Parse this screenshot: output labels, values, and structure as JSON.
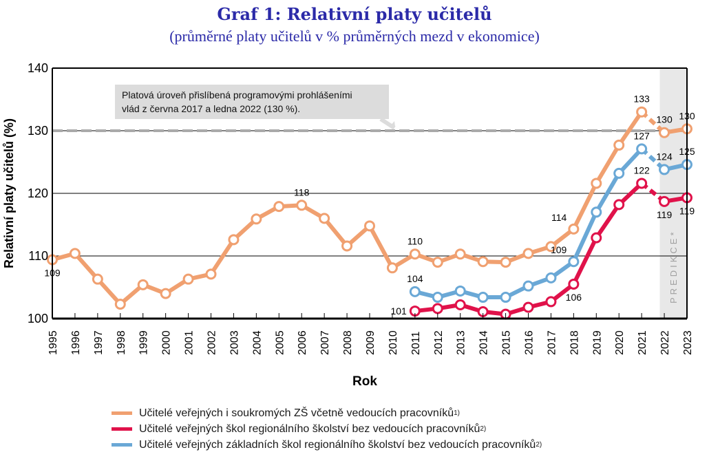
{
  "header": {
    "title": "Graf 1: Relativní platy učitelů",
    "subtitle": "(průměrné platy učitelů v % průměrných mezd v ekonomice)"
  },
  "chart_data": {
    "type": "line",
    "title": "Graf 1: Relativní platy učitelů",
    "subtitle": "(průměrné platy učitelů v % průměrných mezd v ekonomice)",
    "xlabel": "Rok",
    "ylabel": "Relativní platy učitelů (%)",
    "ylim": [
      100,
      140
    ],
    "yticks": [
      100,
      110,
      120,
      130,
      140
    ],
    "grid": "horizontal",
    "legend_position": "bottom",
    "x": [
      1995,
      1996,
      1997,
      1998,
      1999,
      2000,
      2001,
      2002,
      2003,
      2004,
      2005,
      2006,
      2007,
      2008,
      2009,
      2010,
      2011,
      2012,
      2013,
      2014,
      2015,
      2016,
      2017,
      2018,
      2019,
      2020,
      2021,
      2022,
      2023
    ],
    "series": [
      {
        "name": "Učitelé veřejných i soukromých ZŠ včetně vedoucích pracovníků",
        "footnote": "1)",
        "color": "#f0a070",
        "values": [
          109.4,
          110.4,
          106.3,
          102.3,
          105.4,
          104.0,
          106.3,
          107.1,
          112.6,
          115.9,
          117.9,
          118.1,
          116.0,
          111.6,
          114.8,
          108.1,
          110.3,
          109.0,
          110.3,
          109.1,
          109.0,
          110.4,
          111.5,
          114.3,
          121.6,
          127.7,
          133.0,
          129.7,
          130.3
        ],
        "labels": [
          {
            "year": 1995,
            "text": "109",
            "pos": "below"
          },
          {
            "year": 2006,
            "text": "118",
            "pos": "above"
          },
          {
            "year": 2011,
            "text": "110",
            "pos": "above"
          },
          {
            "year": 2018,
            "text": "114",
            "pos": "above-left"
          },
          {
            "year": 2021,
            "text": "133",
            "pos": "above"
          },
          {
            "year": 2022,
            "text": "130",
            "pos": "above"
          },
          {
            "year": 2023,
            "text": "130",
            "pos": "above"
          }
        ]
      },
      {
        "name": "Učitelé veřejných škol regionálního školství bez vedoucích pracovníků",
        "footnote": "2)",
        "color": "#e0124a",
        "values": [
          null,
          null,
          null,
          null,
          null,
          null,
          null,
          null,
          null,
          null,
          null,
          null,
          null,
          null,
          null,
          null,
          101.2,
          101.6,
          102.2,
          101.1,
          100.7,
          101.8,
          102.7,
          105.5,
          112.9,
          118.2,
          121.6,
          118.7,
          119.3
        ],
        "labels": [
          {
            "year": 2011,
            "text": "101",
            "pos": "left"
          },
          {
            "year": 2018,
            "text": "106",
            "pos": "below"
          },
          {
            "year": 2021,
            "text": "122",
            "pos": "above"
          },
          {
            "year": 2022,
            "text": "119",
            "pos": "below"
          },
          {
            "year": 2023,
            "text": "119",
            "pos": "below"
          }
        ]
      },
      {
        "name": "Učitelé veřejných základních škol regionálního školství bez vedoucích pracovníků",
        "footnote": "2)",
        "color": "#6aa8d6",
        "values": [
          null,
          null,
          null,
          null,
          null,
          null,
          null,
          null,
          null,
          null,
          null,
          null,
          null,
          null,
          null,
          null,
          104.3,
          103.4,
          104.4,
          103.4,
          103.4,
          105.2,
          106.5,
          109.1,
          117.0,
          123.2,
          127.1,
          123.8,
          124.6
        ],
        "labels": [
          {
            "year": 2011,
            "text": "104",
            "pos": "above"
          },
          {
            "year": 2018,
            "text": "109",
            "pos": "above-left"
          },
          {
            "year": 2021,
            "text": "127",
            "pos": "above"
          },
          {
            "year": 2022,
            "text": "124",
            "pos": "above"
          },
          {
            "year": 2023,
            "text": "125",
            "pos": "above"
          }
        ]
      }
    ],
    "dashed_segment_from_year": 2021,
    "reference_line": {
      "value": 130,
      "color": "#aaaaaa",
      "annotation": [
        "Platová úroveň přislíbená programovými prohlášeními",
        "vlád z června 2017 a ledna 2022 (130 %)."
      ]
    },
    "prediction_band": {
      "from_year": 2022,
      "to_year": 2023,
      "label": "PREDIKCE*",
      "color": "#e8e8e8"
    }
  },
  "legend": {
    "items": [
      {
        "label": "Učitelé veřejných i soukromých ZŠ včetně vedoucích pracovníků",
        "sup": "1)",
        "color": "#f0a070"
      },
      {
        "label": "Učitelé veřejných škol regionálního školství bez vedoucích pracovníků",
        "sup": "2)",
        "color": "#e0124a"
      },
      {
        "label": "Učitelé veřejných základních škol regionálního školství bez vedoucích pracovníků",
        "sup": "2)",
        "color": "#6aa8d6"
      }
    ]
  }
}
